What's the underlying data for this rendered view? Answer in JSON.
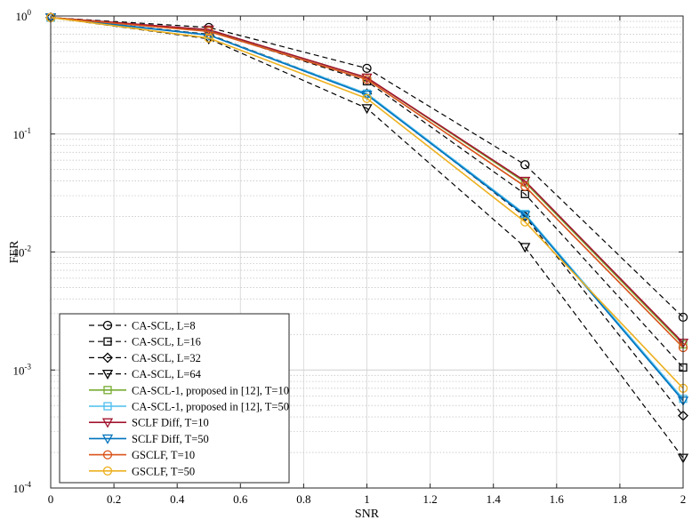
{
  "chart_data": {
    "type": "line",
    "xlabel": "SNR",
    "ylabel": "FER",
    "xlim": [
      0,
      2
    ],
    "ylim": [
      0.0001,
      1
    ],
    "yscale": "log",
    "grid": true,
    "legend_position": "bottom-left",
    "x": [
      0,
      0.5,
      1,
      1.5,
      2
    ],
    "xticks": [
      "0",
      "0.2",
      "0.4",
      "0.6",
      "0.8",
      "1",
      "1.2",
      "1.4",
      "1.6",
      "1.8",
      "2"
    ],
    "yticks": [
      {
        "base": "10",
        "exp": "0",
        "value": 1
      },
      {
        "base": "10",
        "exp": "-1",
        "value": 0.1
      },
      {
        "base": "10",
        "exp": "-2",
        "value": 0.01
      },
      {
        "base": "10",
        "exp": "-3",
        "value": 0.001
      },
      {
        "base": "10",
        "exp": "-4",
        "value": 0.0001
      }
    ],
    "series": [
      {
        "name": "CA-SCL, L=8",
        "color": "#000000",
        "dash": true,
        "marker": "circle",
        "values": [
          0.97,
          0.8,
          0.36,
          0.055,
          0.0028
        ]
      },
      {
        "name": "CA-SCL, L=16",
        "color": "#000000",
        "dash": true,
        "marker": "square",
        "values": [
          0.97,
          0.75,
          0.28,
          0.031,
          0.00105
        ]
      },
      {
        "name": "CA-SCL, L=32",
        "color": "#000000",
        "dash": true,
        "marker": "diamond",
        "values": [
          0.97,
          0.7,
          0.22,
          0.02,
          0.00041
        ]
      },
      {
        "name": "CA-SCL, L=64",
        "color": "#000000",
        "dash": true,
        "marker": "triangle-down",
        "values": [
          0.97,
          0.64,
          0.165,
          0.011,
          0.00018
        ]
      },
      {
        "name": "CA-SCL-1, proposed in [12], T=10",
        "color": "#77ac30",
        "dash": false,
        "marker": "square",
        "values": [
          0.97,
          0.76,
          0.3,
          0.039,
          0.00165
        ]
      },
      {
        "name": "CA-SCL-1, proposed in [12], T=50",
        "color": "#4dbeee",
        "dash": false,
        "marker": "square",
        "values": [
          0.97,
          0.69,
          0.22,
          0.021,
          0.00057
        ]
      },
      {
        "name": "SCLF Diff, T=10",
        "color": "#a2142f",
        "dash": false,
        "marker": "triangle-down",
        "values": [
          0.97,
          0.765,
          0.3,
          0.04,
          0.0017
        ]
      },
      {
        "name": "SCLF Diff, T=50",
        "color": "#0072bd",
        "dash": false,
        "marker": "triangle-down",
        "values": [
          0.97,
          0.69,
          0.215,
          0.0205,
          0.00055
        ]
      },
      {
        "name": "GSCLF, T=10",
        "color": "#d95319",
        "dash": false,
        "marker": "circle",
        "values": [
          0.97,
          0.74,
          0.29,
          0.036,
          0.00155
        ]
      },
      {
        "name": "GSCLF, T=50",
        "color": "#edb120",
        "dash": false,
        "marker": "circle",
        "values": [
          0.97,
          0.65,
          0.2,
          0.018,
          0.0007
        ]
      }
    ]
  }
}
